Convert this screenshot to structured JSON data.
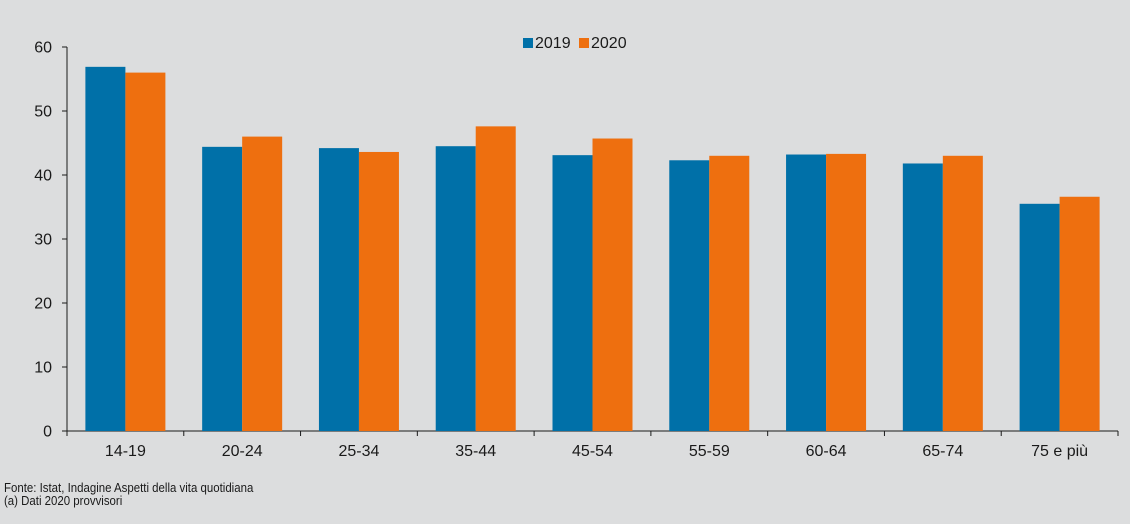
{
  "chart_data": {
    "type": "bar",
    "categories": [
      "14-19",
      "20-24",
      "25-34",
      "35-44",
      "45-54",
      "55-59",
      "60-64",
      "65-74",
      "75 e più"
    ],
    "series": [
      {
        "name": "2019",
        "values": [
          56.9,
          44.4,
          44.2,
          44.5,
          43.1,
          42.3,
          43.2,
          41.8,
          35.5
        ]
      },
      {
        "name": "2020",
        "values": [
          56.0,
          46.0,
          43.6,
          47.6,
          45.7,
          43.0,
          43.3,
          43.0,
          36.6
        ]
      }
    ],
    "yticks": [
      0,
      10,
      20,
      30,
      40,
      50,
      60
    ],
    "ylim": [
      0,
      60
    ],
    "colors": {
      "2019": "#0070a8",
      "2020": "#ee6f0f",
      "background": "#dcddde"
    },
    "legend_position": "top-center",
    "grid": false
  },
  "notes": {
    "source": "Fonte: Istat, Indagine Aspetti della vita quotidiana",
    "footnote": "(a) Dati 2020 provvisori"
  }
}
